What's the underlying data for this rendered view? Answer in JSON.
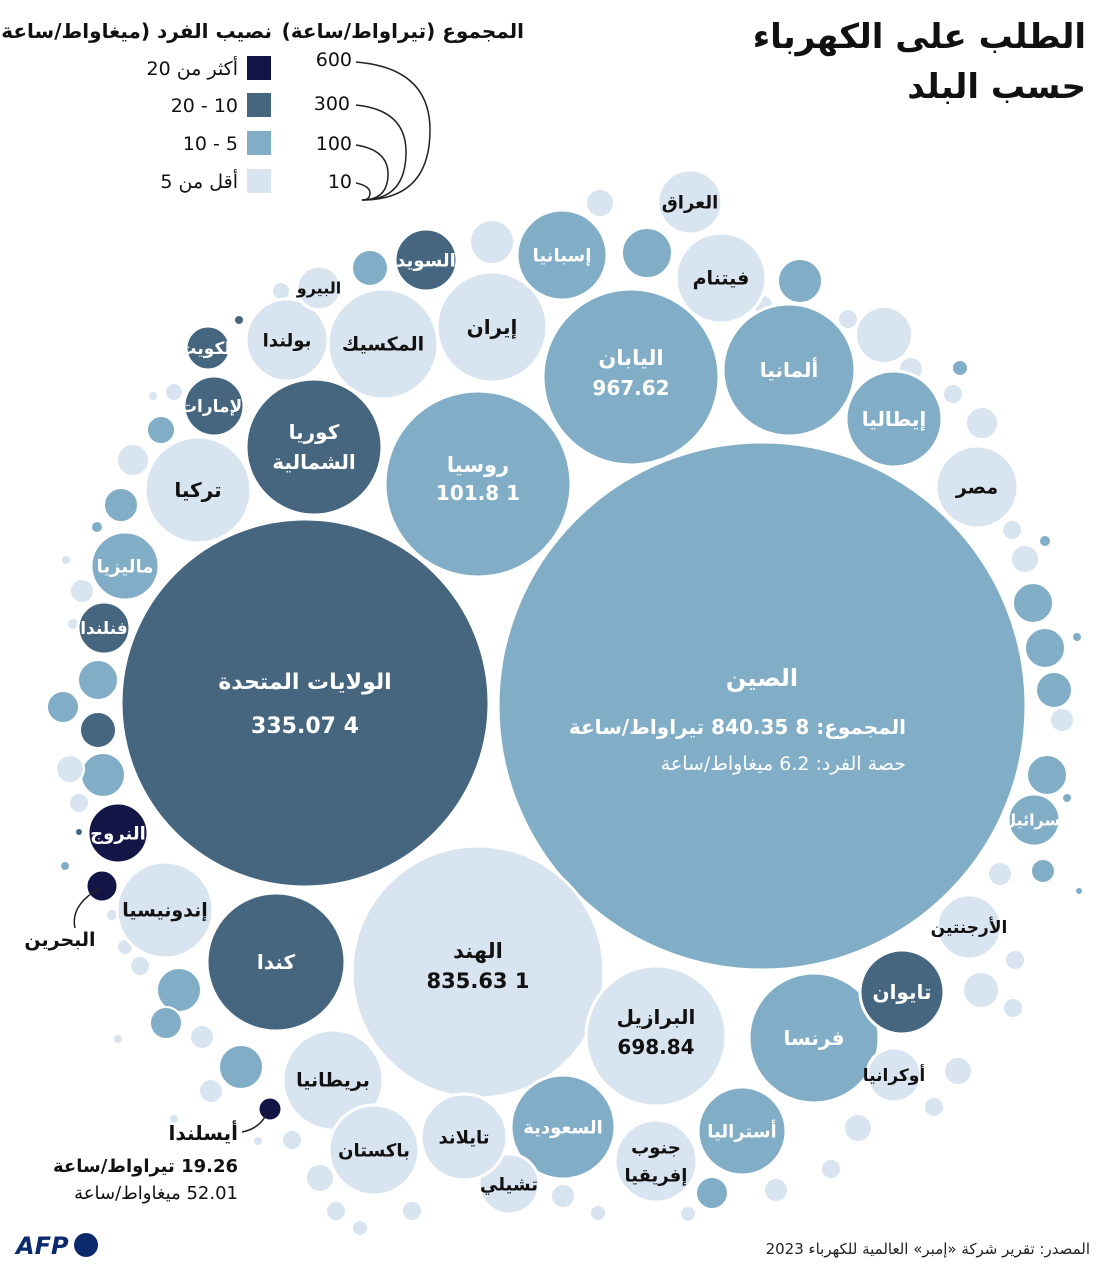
{
  "title_line1": "الطلب على الكهرباء",
  "title_line2": "حسب البلد",
  "legend_total": {
    "title": "المجموع (تيراواط/ساعة)",
    "values": [
      "600",
      "300",
      "100",
      "10"
    ]
  },
  "legend_per_capita": {
    "title": "نصيب الفرد (ميغاواط/ساعة)",
    "items": [
      {
        "label": "أكثر من 20",
        "color": "#121545"
      },
      {
        "label": "10 - 20",
        "color": "#46657f"
      },
      {
        "label": "5 - 10",
        "color": "#81aec6"
      },
      {
        "label": "أقل من 5",
        "color": "#d8e4ef"
      }
    ]
  },
  "chart_data": {
    "type": "bubble",
    "title": "الطلب على الكهرباء حسب البلد",
    "size_unit": "تيراواط/ساعة",
    "color_unit": "ميغاواط/ساعة",
    "points": [
      {
        "name": "الصين",
        "total": "المجموع: 8 840.35 تيراواط/ساعة",
        "per_capita": "حصة الفرد: 6.2 ميغاواط/ساعة",
        "category": "5 - 10"
      },
      {
        "name": "الولايات المتحدة",
        "total": "4 335.07",
        "category": "10 - 20"
      },
      {
        "name": "الهند",
        "total": "1 835.63",
        "category": "أقل من 5"
      },
      {
        "name": "روسيا",
        "total": "1 101.8",
        "category": "5 - 10"
      },
      {
        "name": "اليابان",
        "total": "967.62",
        "category": "5 - 10"
      },
      {
        "name": "البرازيل",
        "total": "698.84",
        "category": "أقل من 5"
      },
      {
        "name": "أيسلندا",
        "total": "19.26 تيراواط/ساعة",
        "per_capita": "52.01 ميغاواط/ساعة",
        "category": "أكثر من 20"
      }
    ],
    "labels_only": [
      "كوريا الشمالية",
      "كندا",
      "ألمانيا",
      "فرنسا",
      "إيطاليا",
      "إيران",
      "المكسيك",
      "تركيا",
      "السعودية",
      "بريطانيا",
      "إسبانيا",
      "فيتنام",
      "العراق",
      "السويد",
      "بولندا",
      "البيرو",
      "الكويت",
      "الإمارات",
      "ماليزيا",
      "فنلندا",
      "النروج",
      "البحرين",
      "إندونيسيا",
      "مصر",
      "إسرائيل",
      "الأرجنتين",
      "تايوان",
      "أوكرانيا",
      "أستراليا",
      "جنوب إفريقيا",
      "تشيلي",
      "تايلاند",
      "باكستان"
    ]
  },
  "source": "المصدر: تقرير شركة «إمبر» العالمية للكهرباء 2023",
  "logo": "AFP",
  "colors": {
    "over20": "#121545",
    "c10_20": "#46657f",
    "c5_10": "#81aec6",
    "under5": "#d8e4ef"
  }
}
